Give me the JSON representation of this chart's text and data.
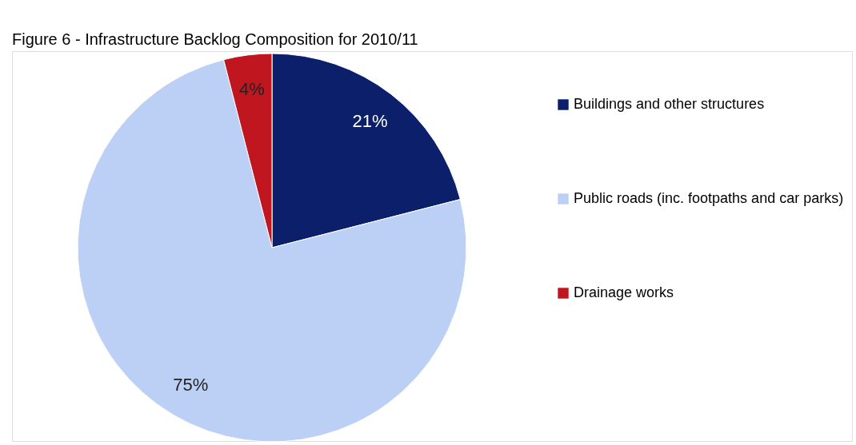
{
  "chart_data": {
    "type": "pie",
    "title": "Figure 6 - Infrastructure Backlog Composition for 2010/11",
    "categories": [
      "Buildings and other structures",
      "Public roads (inc. footpaths and car parks)",
      "Drainage works"
    ],
    "values": [
      21,
      75,
      4
    ],
    "colors": [
      "#0c1f6b",
      "#bccff5",
      "#c0161f"
    ],
    "value_labels": [
      "21%",
      "75%",
      "4%"
    ],
    "legend": "right"
  }
}
